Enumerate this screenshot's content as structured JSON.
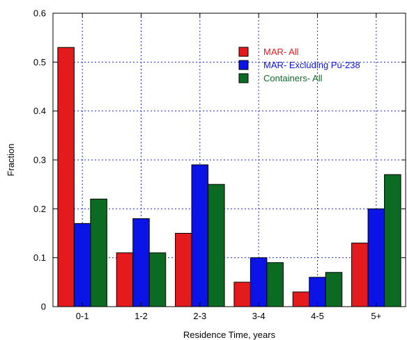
{
  "chart_data": {
    "type": "bar",
    "categories": [
      "0-1",
      "1-2",
      "2-3",
      "3-4",
      "4-5",
      "5+"
    ],
    "series": [
      {
        "name": "MAR- All",
        "values": [
          0.53,
          0.11,
          0.15,
          0.05,
          0.03,
          0.13
        ],
        "color": "#e41a1c"
      },
      {
        "name": "MAR- Excluding Pu-238",
        "values": [
          0.17,
          0.18,
          0.29,
          0.1,
          0.06,
          0.2
        ],
        "color": "#0a14e6"
      },
      {
        "name": "Containers- All",
        "values": [
          0.22,
          0.11,
          0.25,
          0.09,
          0.07,
          0.27
        ],
        "color": "#0b6b23"
      }
    ],
    "xlabel": "Residence Time, years",
    "ylabel": "Fraction",
    "ylim": [
      0,
      0.6
    ],
    "yticks": [
      "0",
      "0.1",
      "0.2",
      "0.3",
      "0.4",
      "0.5",
      "0.6"
    ],
    "grid": true,
    "legend_position": "top-right"
  }
}
